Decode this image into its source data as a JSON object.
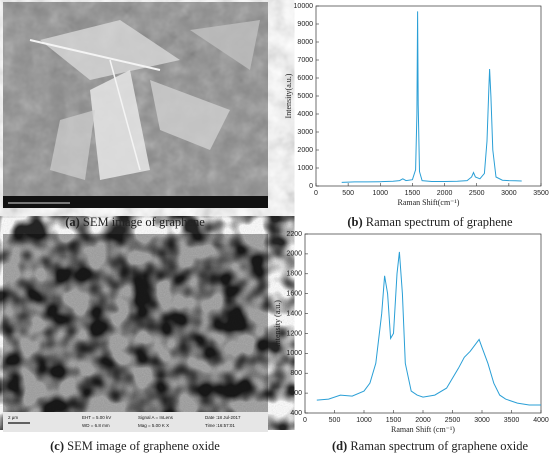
{
  "chart_data": [
    {
      "type": "line",
      "x_label": "Raman Shift(cm⁻¹)",
      "y_label": "Intensity(a.u.)",
      "x": [
        400,
        600,
        800,
        1000,
        1200,
        1300,
        1350,
        1400,
        1500,
        1550,
        1570,
        1580,
        1590,
        1610,
        1650,
        1800,
        2000,
        2200,
        2350,
        2420,
        2450,
        2480,
        2550,
        2620,
        2660,
        2690,
        2700,
        2720,
        2750,
        2800,
        2900,
        3000,
        3100,
        3200
      ],
      "values": [
        200,
        230,
        230,
        240,
        260,
        300,
        400,
        300,
        350,
        900,
        4000,
        9700,
        4500,
        800,
        300,
        250,
        250,
        260,
        300,
        500,
        750,
        500,
        400,
        700,
        2500,
        5500,
        6500,
        5000,
        2000,
        500,
        320,
        300,
        290,
        280
      ],
      "color": "#2a9fd6",
      "xlim": [
        0,
        3500
      ],
      "xticks": [
        0,
        500,
        1000,
        1500,
        2000,
        2500,
        3000,
        3500
      ],
      "ylim": [
        0,
        10000
      ],
      "yticks": [
        0,
        1000,
        2000,
        3000,
        4000,
        5000,
        6000,
        7000,
        8000,
        9000,
        10000
      ],
      "caption": {
        "label": "(b)",
        "text": "Raman spectrum of graphene"
      }
    },
    {
      "type": "line",
      "x_label": "Raman Shift (cm⁻¹)",
      "y_label": "Intensity (a.u.)",
      "x": [
        200,
        400,
        600,
        800,
        1000,
        1100,
        1200,
        1300,
        1350,
        1400,
        1450,
        1500,
        1560,
        1600,
        1650,
        1700,
        1800,
        1900,
        2000,
        2200,
        2400,
        2600,
        2700,
        2800,
        2900,
        2950,
        3000,
        3100,
        3200,
        3300,
        3400,
        3600,
        3800,
        4000
      ],
      "values": [
        530,
        540,
        580,
        570,
        620,
        700,
        900,
        1400,
        1780,
        1600,
        1150,
        1200,
        1800,
        2020,
        1600,
        900,
        620,
        580,
        560,
        580,
        650,
        850,
        960,
        1020,
        1100,
        1140,
        1060,
        900,
        700,
        580,
        540,
        500,
        480,
        480
      ],
      "color": "#2a9fd6",
      "xlim": [
        0,
        4000
      ],
      "xticks": [
        0,
        500,
        1000,
        1500,
        2000,
        2500,
        3000,
        3500,
        4000
      ],
      "ylim": [
        400,
        2200
      ],
      "yticks": [
        400,
        600,
        800,
        1000,
        1200,
        1400,
        1600,
        1800,
        2000,
        2200
      ],
      "caption": {
        "label": "(d)",
        "text": "Raman spectrum of graphene oxide"
      }
    }
  ],
  "panels": {
    "a": {
      "caption": {
        "label": "(a)",
        "text": "SEM image of graphene"
      }
    },
    "c": {
      "caption": {
        "label": "(c)",
        "text": "SEM image of graphene oxide"
      },
      "info": [
        "2 μm",
        "EHT = 5.00 kV",
        "WD = 6.8 mm",
        "Signal A = InLens",
        "Mag = 5.00 K X",
        "Date :18 Jul-2017",
        "Time :16:57:01"
      ]
    }
  }
}
